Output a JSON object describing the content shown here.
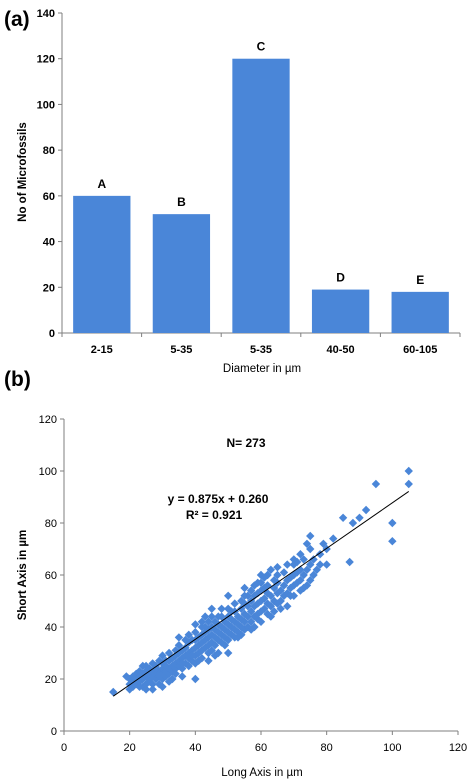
{
  "chart_data": [
    {
      "panel": "(a)",
      "type": "bar",
      "categories": [
        "2-15",
        "5-35",
        "5-35",
        "40-50",
        "60-105"
      ],
      "values": [
        60,
        52,
        120,
        19,
        18
      ],
      "bar_labels": [
        "A",
        "B",
        "C",
        "D",
        "E"
      ],
      "xlabel": "Diameter in µm",
      "ylabel": "No of Microfossils",
      "ylim": [
        0,
        140
      ],
      "yticks": [
        0,
        20,
        40,
        60,
        80,
        100,
        120,
        140
      ],
      "bar_color": "#4a86d8",
      "grid": false
    },
    {
      "panel": "(b)",
      "type": "scatter",
      "xlabel": "Long Axis in µm",
      "ylabel": "Short Axis in µm",
      "xlim": [
        0,
        120
      ],
      "ylim": [
        0,
        120
      ],
      "xticks": [
        0,
        20,
        40,
        60,
        80,
        100,
        120
      ],
      "yticks": [
        0,
        20,
        40,
        60,
        80,
        100,
        120
      ],
      "marker_color": "#4a86d8",
      "annotation_n": "N= 273",
      "equation": "y = 0.875x + 0.260",
      "r_squared": "R² = 0.921",
      "trendline": {
        "slope": 0.875,
        "intercept": 0.26,
        "x_range": [
          15,
          105
        ]
      },
      "points": [
        [
          15,
          15
        ],
        [
          20,
          16
        ],
        [
          20,
          18
        ],
        [
          20,
          20
        ],
        [
          21,
          19
        ],
        [
          21,
          21
        ],
        [
          22,
          18
        ],
        [
          22,
          20
        ],
        [
          22,
          22
        ],
        [
          23,
          19
        ],
        [
          23,
          21
        ],
        [
          23,
          23
        ],
        [
          24,
          17
        ],
        [
          24,
          20
        ],
        [
          24,
          22
        ],
        [
          25,
          18
        ],
        [
          25,
          21
        ],
        [
          25,
          23
        ],
        [
          25,
          25
        ],
        [
          26,
          20
        ],
        [
          26,
          22
        ],
        [
          26,
          24
        ],
        [
          27,
          18
        ],
        [
          27,
          21
        ],
        [
          27,
          23
        ],
        [
          27,
          26
        ],
        [
          28,
          20
        ],
        [
          28,
          22
        ],
        [
          28,
          25
        ],
        [
          29,
          21
        ],
        [
          29,
          23
        ],
        [
          29,
          27
        ],
        [
          30,
          17
        ],
        [
          30,
          20
        ],
        [
          30,
          22
        ],
        [
          30,
          24
        ],
        [
          30,
          26
        ],
        [
          30,
          29
        ],
        [
          31,
          21
        ],
        [
          31,
          23
        ],
        [
          31,
          25
        ],
        [
          32,
          22
        ],
        [
          32,
          24
        ],
        [
          32,
          27
        ],
        [
          32,
          30
        ],
        [
          33,
          23
        ],
        [
          33,
          25
        ],
        [
          33,
          28
        ],
        [
          34,
          22
        ],
        [
          34,
          24
        ],
        [
          34,
          26
        ],
        [
          34,
          29
        ],
        [
          35,
          25
        ],
        [
          35,
          27
        ],
        [
          35,
          30
        ],
        [
          35,
          33
        ],
        [
          35,
          36
        ],
        [
          36,
          24
        ],
        [
          36,
          28
        ],
        [
          36,
          31
        ],
        [
          37,
          26
        ],
        [
          37,
          29
        ],
        [
          37,
          32
        ],
        [
          38,
          25
        ],
        [
          38,
          28
        ],
        [
          38,
          30
        ],
        [
          38,
          34
        ],
        [
          39,
          27
        ],
        [
          39,
          31
        ],
        [
          39,
          35
        ],
        [
          40,
          20
        ],
        [
          40,
          26
        ],
        [
          40,
          29
        ],
        [
          40,
          32
        ],
        [
          40,
          35
        ],
        [
          40,
          38
        ],
        [
          41,
          30
        ],
        [
          41,
          33
        ],
        [
          41,
          36
        ],
        [
          42,
          28
        ],
        [
          42,
          31
        ],
        [
          42,
          34
        ],
        [
          42,
          37
        ],
        [
          42,
          40
        ],
        [
          43,
          32
        ],
        [
          43,
          35
        ],
        [
          43,
          38
        ],
        [
          44,
          30
        ],
        [
          44,
          33
        ],
        [
          44,
          36
        ],
        [
          44,
          39
        ],
        [
          44,
          42
        ],
        [
          45,
          31
        ],
        [
          45,
          34
        ],
        [
          45,
          37
        ],
        [
          45,
          40
        ],
        [
          45,
          44
        ],
        [
          46,
          33
        ],
        [
          46,
          36
        ],
        [
          46,
          39
        ],
        [
          46,
          42
        ],
        [
          47,
          30
        ],
        [
          47,
          35
        ],
        [
          47,
          38
        ],
        [
          47,
          41
        ],
        [
          48,
          34
        ],
        [
          48,
          37
        ],
        [
          48,
          40
        ],
        [
          48,
          44
        ],
        [
          49,
          36
        ],
        [
          49,
          39
        ],
        [
          49,
          42
        ],
        [
          50,
          30
        ],
        [
          50,
          35
        ],
        [
          50,
          38
        ],
        [
          50,
          41
        ],
        [
          50,
          44
        ],
        [
          50,
          47
        ],
        [
          51,
          37
        ],
        [
          51,
          40
        ],
        [
          51,
          43
        ],
        [
          52,
          36
        ],
        [
          52,
          39
        ],
        [
          52,
          42
        ],
        [
          52,
          46
        ],
        [
          53,
          38
        ],
        [
          53,
          41
        ],
        [
          53,
          44
        ],
        [
          54,
          37
        ],
        [
          54,
          40
        ],
        [
          54,
          43
        ],
        [
          54,
          47
        ],
        [
          55,
          39
        ],
        [
          55,
          42
        ],
        [
          55,
          45
        ],
        [
          55,
          49
        ],
        [
          55,
          52
        ],
        [
          56,
          40
        ],
        [
          56,
          44
        ],
        [
          56,
          48
        ],
        [
          57,
          42
        ],
        [
          57,
          46
        ],
        [
          57,
          50
        ],
        [
          58,
          40
        ],
        [
          58,
          44
        ],
        [
          58,
          48
        ],
        [
          58,
          52
        ],
        [
          59,
          45
        ],
        [
          59,
          49
        ],
        [
          59,
          53
        ],
        [
          60,
          42
        ],
        [
          60,
          46
        ],
        [
          60,
          50
        ],
        [
          60,
          54
        ],
        [
          60,
          57
        ],
        [
          61,
          47
        ],
        [
          61,
          51
        ],
        [
          62,
          45
        ],
        [
          62,
          49
        ],
        [
          62,
          53
        ],
        [
          62,
          56
        ],
        [
          63,
          48
        ],
        [
          63,
          52
        ],
        [
          64,
          46
        ],
        [
          64,
          50
        ],
        [
          64,
          55
        ],
        [
          65,
          49
        ],
        [
          65,
          53
        ],
        [
          65,
          57
        ],
        [
          65,
          60
        ],
        [
          66,
          50
        ],
        [
          66,
          54
        ],
        [
          67,
          52
        ],
        [
          67,
          56
        ],
        [
          68,
          48
        ],
        [
          68,
          53
        ],
        [
          68,
          58
        ],
        [
          69,
          55
        ],
        [
          69,
          59
        ],
        [
          70,
          52
        ],
        [
          70,
          56
        ],
        [
          70,
          60
        ],
        [
          70,
          64
        ],
        [
          71,
          57
        ],
        [
          71,
          61
        ],
        [
          72,
          54
        ],
        [
          72,
          58
        ],
        [
          72,
          62
        ],
        [
          73,
          60
        ],
        [
          73,
          66
        ],
        [
          74,
          56
        ],
        [
          74,
          62
        ],
        [
          75,
          58
        ],
        [
          75,
          64
        ],
        [
          75,
          70
        ],
        [
          75,
          75
        ],
        [
          76,
          66
        ],
        [
          77,
          62
        ],
        [
          78,
          68
        ],
        [
          79,
          72
        ],
        [
          80,
          64
        ],
        [
          80,
          70
        ],
        [
          82,
          74
        ],
        [
          85,
          82
        ],
        [
          87,
          65
        ],
        [
          88,
          80
        ],
        [
          90,
          82
        ],
        [
          92,
          85
        ],
        [
          95,
          95
        ],
        [
          100,
          73
        ],
        [
          100,
          80
        ],
        [
          105,
          95
        ],
        [
          105,
          100
        ],
        [
          19,
          21
        ],
        [
          24,
          25
        ],
        [
          26,
          19
        ],
        [
          28,
          24
        ],
        [
          31,
          27
        ],
        [
          33,
          20
        ],
        [
          36,
          26
        ],
        [
          37,
          35
        ],
        [
          39,
          29
        ],
        [
          41,
          27
        ],
        [
          43,
          40
        ],
        [
          46,
          29
        ],
        [
          47,
          44
        ],
        [
          49,
          33
        ],
        [
          51,
          46
        ],
        [
          53,
          36
        ],
        [
          56,
          52
        ],
        [
          57,
          39
        ],
        [
          59,
          43
        ],
        [
          61,
          55
        ],
        [
          63,
          44
        ],
        [
          64,
          58
        ],
        [
          66,
          47
        ],
        [
          67,
          61
        ],
        [
          69,
          52
        ],
        [
          71,
          65
        ],
        [
          73,
          55
        ],
        [
          76,
          60
        ],
        [
          78,
          64
        ],
        [
          34,
          31
        ],
        [
          38,
          37
        ],
        [
          42,
          42
        ],
        [
          45,
          47
        ],
        [
          48,
          47
        ],
        [
          52,
          49
        ],
        [
          55,
          55
        ],
        [
          58,
          56
        ],
        [
          60,
          60
        ],
        [
          62,
          60
        ],
        [
          44,
          27
        ],
        [
          36,
          21
        ],
        [
          32,
          19
        ],
        [
          29,
          18
        ],
        [
          27,
          16
        ],
        [
          25,
          16
        ],
        [
          23,
          17
        ],
        [
          21,
          17
        ],
        [
          50,
          52
        ],
        [
          54,
          50
        ],
        [
          57,
          54
        ],
        [
          59,
          57
        ],
        [
          61,
          59
        ],
        [
          63,
          62
        ],
        [
          65,
          63
        ],
        [
          68,
          64
        ],
        [
          70,
          66
        ],
        [
          72,
          68
        ],
        [
          74,
          72
        ],
        [
          40,
          41
        ],
        [
          43,
          44
        ]
      ]
    }
  ]
}
